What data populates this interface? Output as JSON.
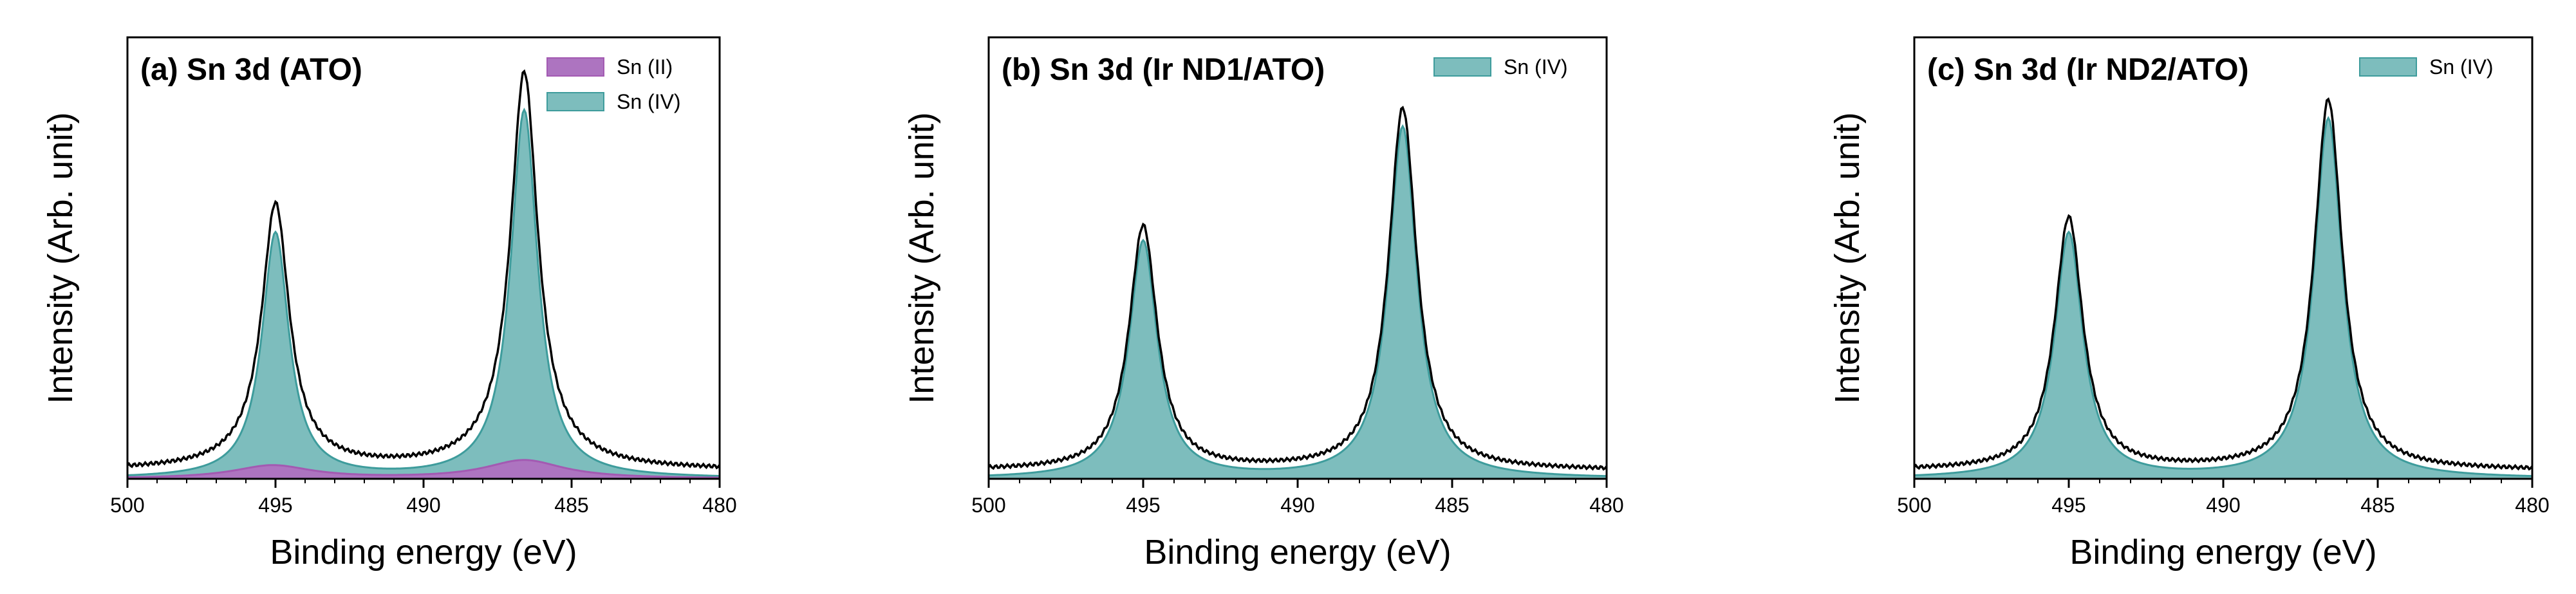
{
  "colors": {
    "sn2": "#a35ab2",
    "sn4": "#3e9c9c",
    "sn4_fill": "#7dbdbd",
    "sn2_fill": "#ad74c0",
    "envelope": "#000000"
  },
  "chart_data": [
    {
      "type": "area",
      "title": "(a) Sn 3d (ATO)",
      "xlabel": "Binding energy (eV)",
      "ylabel": "Intensity (Arb. unit)",
      "xlim": [
        500,
        480
      ],
      "ylim": [
        0,
        1.08
      ],
      "x_ticks": [
        "500",
        "495",
        "490",
        "485",
        "480"
      ],
      "legend": [
        "Sn (II)",
        "Sn (IV)"
      ],
      "legend_position": "top-right",
      "series": [
        {
          "name": "Sn (II)",
          "peaks": [
            {
              "center": 495.1,
              "height": 0.032,
              "width": 1.6
            },
            {
              "center": 486.6,
              "height": 0.045,
              "width": 1.6
            }
          ]
        },
        {
          "name": "Sn (IV)",
          "peaks": [
            {
              "center": 495.0,
              "height": 0.6,
              "width": 0.55
            },
            {
              "center": 486.6,
              "height": 0.9,
              "width": 0.55
            }
          ]
        }
      ],
      "envelope": {
        "peak_values": [
          0.62,
          0.95
        ]
      }
    },
    {
      "type": "area",
      "title": "(b) Sn 3d (Ir ND1/ATO)",
      "xlabel": "Binding energy (eV)",
      "ylabel": "Intensity (Arb. unit)",
      "xlim": [
        500,
        480
      ],
      "ylim": [
        0,
        1.08
      ],
      "x_ticks": [
        "500",
        "495",
        "490",
        "485",
        "480"
      ],
      "legend": [
        "Sn (IV)"
      ],
      "legend_position": "top-right",
      "series": [
        {
          "name": "Sn (IV)",
          "peaks": [
            {
              "center": 495.0,
              "height": 0.58,
              "width": 0.55
            },
            {
              "center": 486.6,
              "height": 0.86,
              "width": 0.55
            }
          ]
        }
      ],
      "envelope": {
        "peak_values": [
          0.59,
          0.85
        ]
      }
    },
    {
      "type": "area",
      "title": "(c) Sn 3d (Ir ND2/ATO)",
      "xlabel": "Binding energy (eV)",
      "ylabel": "Intensity (Arb. unit)",
      "xlim": [
        500,
        480
      ],
      "ylim": [
        0,
        1.08
      ],
      "x_ticks": [
        "500",
        "495",
        "490",
        "485",
        "480"
      ],
      "legend": [
        "Sn (IV)"
      ],
      "legend_position": "top-right",
      "series": [
        {
          "name": "Sn (IV)",
          "peaks": [
            {
              "center": 495.0,
              "height": 0.6,
              "width": 0.55
            },
            {
              "center": 486.6,
              "height": 0.88,
              "width": 0.55
            }
          ]
        }
      ],
      "envelope": {
        "peak_values": [
          0.61,
          0.87
        ]
      }
    }
  ]
}
